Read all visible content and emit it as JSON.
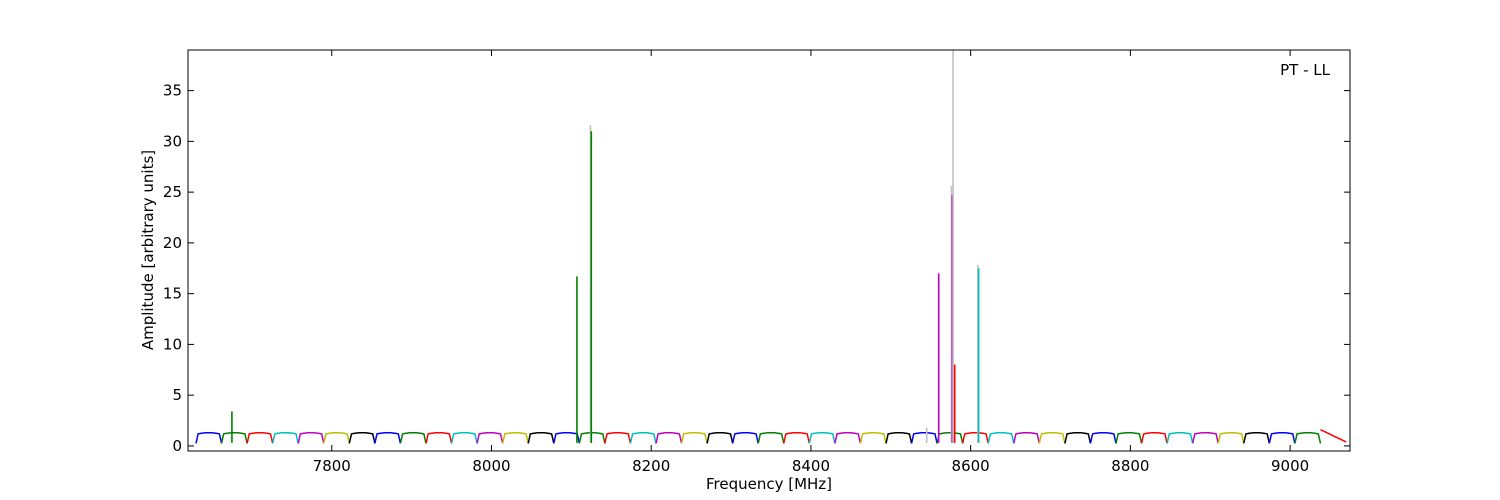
{
  "chart_data": {
    "type": "line",
    "title": "",
    "annotation": "PT - LL",
    "xlabel": "Frequency [MHz]",
    "ylabel": "Amplitude [arbitrary units]",
    "xlim": [
      7620,
      9075
    ],
    "ylim": [
      -0.5,
      39
    ],
    "x_ticks": [
      7800,
      8000,
      8200,
      8400,
      8600,
      8800,
      9000
    ],
    "y_ticks": [
      0,
      5,
      10,
      15,
      20,
      25,
      30,
      35
    ],
    "grid": false,
    "legend": "none",
    "channel_start": 7630,
    "channel_width": 32,
    "channel_count": 45,
    "channel_colors": [
      "#0000ff",
      "#008000",
      "#ff0000",
      "#00bfbf",
      "#bf00bf",
      "#bfbf00",
      "#000000"
    ],
    "bandpass_peak": 1.3,
    "spikes": [
      {
        "x": 7675,
        "y": 3.4,
        "color": "#008000"
      },
      {
        "x": 8107,
        "y": 16.7,
        "color": "#008000"
      },
      {
        "x": 8124,
        "y": 31.6,
        "color": "#c0c0c0"
      },
      {
        "x": 8125,
        "y": 31.0,
        "color": "#008000"
      },
      {
        "x": 8545,
        "y": 1.8,
        "color": "#c0c0c0"
      },
      {
        "x": 8560,
        "y": 17.0,
        "color": "#bf00bf"
      },
      {
        "x": 8576,
        "y": 25.6,
        "color": "#c0c0c0"
      },
      {
        "x": 8577,
        "y": 24.7,
        "color": "#bf00bf"
      },
      {
        "x": 8578,
        "y": 39.0,
        "color": "#c0c0c0"
      },
      {
        "x": 8580,
        "y": 8.0,
        "color": "#ff0000"
      },
      {
        "x": 8609,
        "y": 17.8,
        "color": "#c0c0c0"
      },
      {
        "x": 8610,
        "y": 17.5,
        "color": "#00bfbf"
      }
    ]
  }
}
